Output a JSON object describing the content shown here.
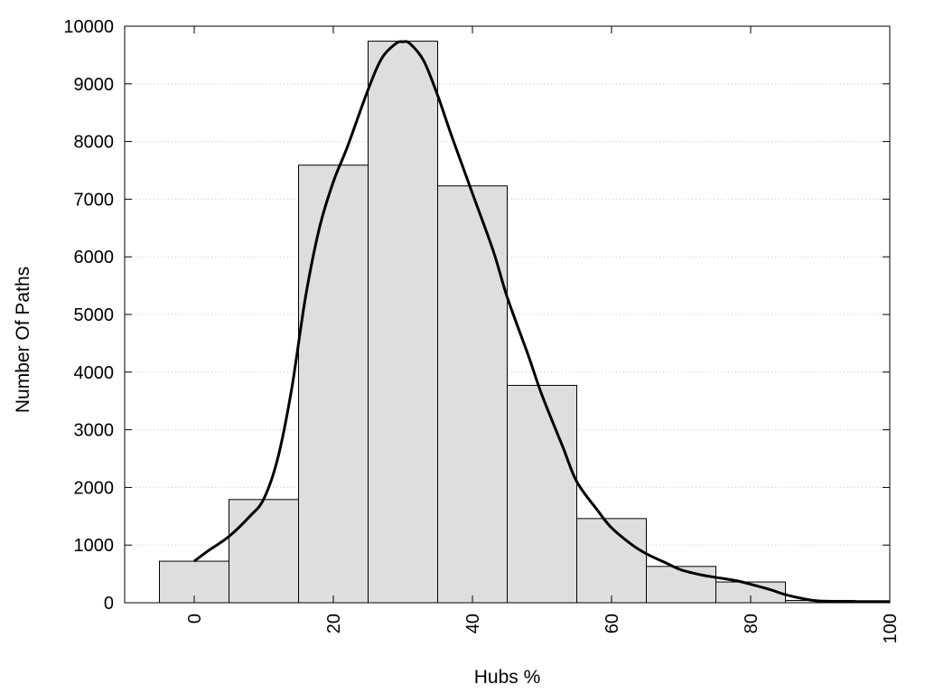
{
  "chart_data": {
    "type": "bar",
    "xlabel": "Hubs %",
    "ylabel": "Number Of Paths",
    "xlim": [
      -10,
      100
    ],
    "ylim": [
      0,
      10000
    ],
    "x_ticks": [
      0,
      20,
      40,
      60,
      80,
      100
    ],
    "y_ticks": [
      0,
      1000,
      2000,
      3000,
      4000,
      5000,
      6000,
      7000,
      8000,
      9000,
      10000
    ],
    "grid": "horizontal dotted",
    "bin_width": 10,
    "bars": [
      {
        "x": 0,
        "value": 720
      },
      {
        "x": 10,
        "value": 1790
      },
      {
        "x": 20,
        "value": 7590
      },
      {
        "x": 30,
        "value": 9740
      },
      {
        "x": 40,
        "value": 7230
      },
      {
        "x": 50,
        "value": 3770
      },
      {
        "x": 60,
        "value": 1460
      },
      {
        "x": 70,
        "value": 630
      },
      {
        "x": 80,
        "value": 360
      },
      {
        "x": 90,
        "value": 40
      }
    ],
    "density_curve": {
      "x": [
        0,
        2,
        5,
        8,
        10,
        12,
        14,
        16,
        18,
        20,
        22,
        25,
        27,
        29,
        30,
        31,
        33,
        35,
        37,
        40,
        43,
        45,
        48,
        50,
        53,
        55,
        58,
        60,
        63,
        65,
        68,
        70,
        73,
        75,
        78,
        80,
        83,
        85,
        88,
        90,
        95,
        100
      ],
      "y": [
        720,
        900,
        1150,
        1500,
        1800,
        2500,
        3700,
        5300,
        6500,
        7300,
        7900,
        8900,
        9450,
        9700,
        9730,
        9700,
        9400,
        8800,
        8100,
        7100,
        6100,
        5300,
        4300,
        3600,
        2700,
        2100,
        1600,
        1300,
        1000,
        850,
        680,
        570,
        480,
        440,
        380,
        320,
        220,
        140,
        60,
        30,
        20,
        20
      ]
    },
    "colors": {
      "bar_fill": "#dedede",
      "bar_stroke": "#000000",
      "curve": "#000000",
      "grid": "#c8c8c8"
    }
  }
}
